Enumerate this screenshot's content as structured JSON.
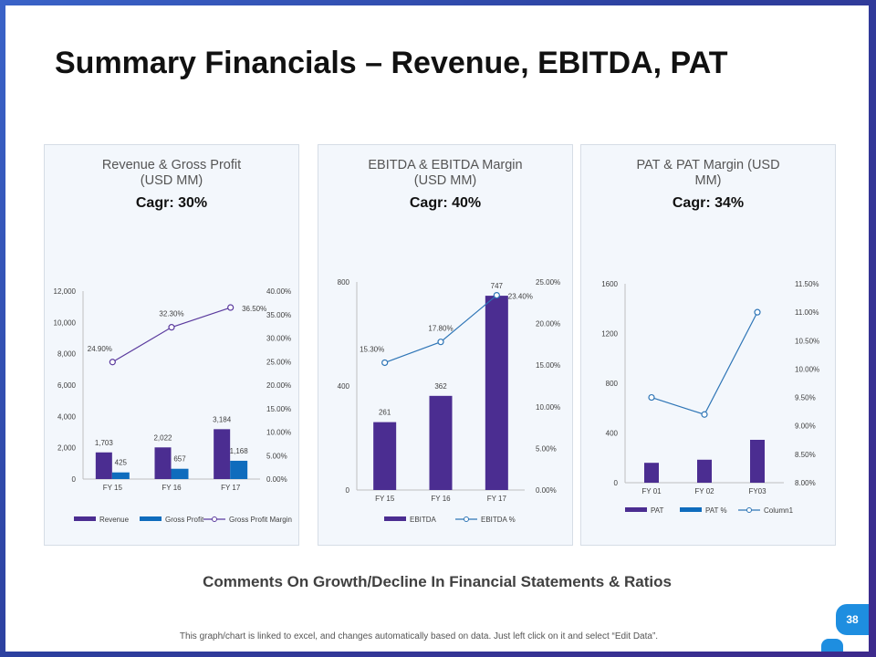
{
  "slide": {
    "title": "Summary Financials – Revenue, EBITDA, PAT",
    "comments_heading": "Comments On Growth/Decline In Financial Statements & Ratios",
    "footnote": "This graph/chart is linked to excel, and changes automatically based on data. Just left click on it and select “Edit Data”.",
    "page_number": "38"
  },
  "colors": {
    "bar_primary": "#4b2d91",
    "bar_secondary": "#0f6cbd",
    "line_purple": "#5b3b9e",
    "line_blue": "#2e75b6",
    "panel_bg": "#f3f7fc"
  },
  "chart_data": [
    {
      "type": "bar",
      "title_line1": "Revenue  & Gross Profit",
      "title_line2": "(USD MM)",
      "cagr": "Cagr: 30%",
      "categories": [
        "FY 15",
        "FY 16",
        "FY 17"
      ],
      "ylim": [
        0,
        12000
      ],
      "y_ticks": [
        "0",
        "2,000",
        "4,000",
        "6,000",
        "8,000",
        "10,000",
        "12,000"
      ],
      "y2lim": [
        0,
        40
      ],
      "y2_ticks": [
        "0.00%",
        "5.00%",
        "10.00%",
        "15.00%",
        "20.00%",
        "25.00%",
        "30.00%",
        "35.00%",
        "40.00%"
      ],
      "series": [
        {
          "name": "Revenue",
          "values": [
            1703,
            2022,
            3184
          ],
          "labels": [
            "1,703",
            "2,022",
            "3,184"
          ]
        },
        {
          "name": "Gross Profit",
          "values": [
            425,
            657,
            1168
          ],
          "labels": [
            "425",
            "657",
            "1,168"
          ]
        },
        {
          "name": "Gross Profit Margin",
          "type": "line",
          "axis": "secondary",
          "values": [
            24.9,
            32.3,
            36.5
          ],
          "labels": [
            "24.90%",
            "32.30%",
            "36.50%"
          ]
        }
      ],
      "legend": "bottom"
    },
    {
      "type": "bar",
      "title_line1": "EBITDA & EBITDA Margin",
      "title_line2": "(USD MM)",
      "cagr": "Cagr: 40%",
      "categories": [
        "FY 15",
        "FY 16",
        "FY 17"
      ],
      "ylim": [
        0,
        800
      ],
      "y_ticks": [
        "0",
        "400",
        "800"
      ],
      "y2lim": [
        0,
        25
      ],
      "y2_ticks": [
        "0.00%",
        "5.00%",
        "10.00%",
        "15.00%",
        "20.00%",
        "25.00%"
      ],
      "series": [
        {
          "name": "EBITDA",
          "values": [
            261,
            362,
            747
          ],
          "labels": [
            "261",
            "362",
            "747"
          ]
        },
        {
          "name": "EBITDA %",
          "type": "line",
          "axis": "secondary",
          "values": [
            15.3,
            17.8,
            23.4
          ],
          "labels": [
            "15.30%",
            "17.80%",
            "23.40%"
          ]
        }
      ],
      "legend": "bottom"
    },
    {
      "type": "bar",
      "title_line1": "PAT & PAT Margin (USD",
      "title_line2": "MM)",
      "cagr": "Cagr: 34%",
      "categories": [
        "FY 01",
        "FY 02",
        "FY03"
      ],
      "ylim": [
        0,
        1600
      ],
      "y_ticks": [
        "0",
        "400",
        "800",
        "1200",
        "1600"
      ],
      "y2lim": [
        8,
        11.5
      ],
      "y2_ticks": [
        "8.00%",
        "8.50%",
        "9.00%",
        "9.50%",
        "10.00%",
        "10.50%",
        "11.00%",
        "11.50%"
      ],
      "series": [
        {
          "name": "PAT",
          "values": [
            160,
            185,
            345
          ]
        },
        {
          "name": "PAT %",
          "values": [
            0,
            0,
            0
          ]
        },
        {
          "name": "Column1",
          "type": "line",
          "axis": "secondary",
          "values": [
            9.5,
            9.2,
            11.0
          ]
        }
      ],
      "legend": "bottom"
    }
  ]
}
